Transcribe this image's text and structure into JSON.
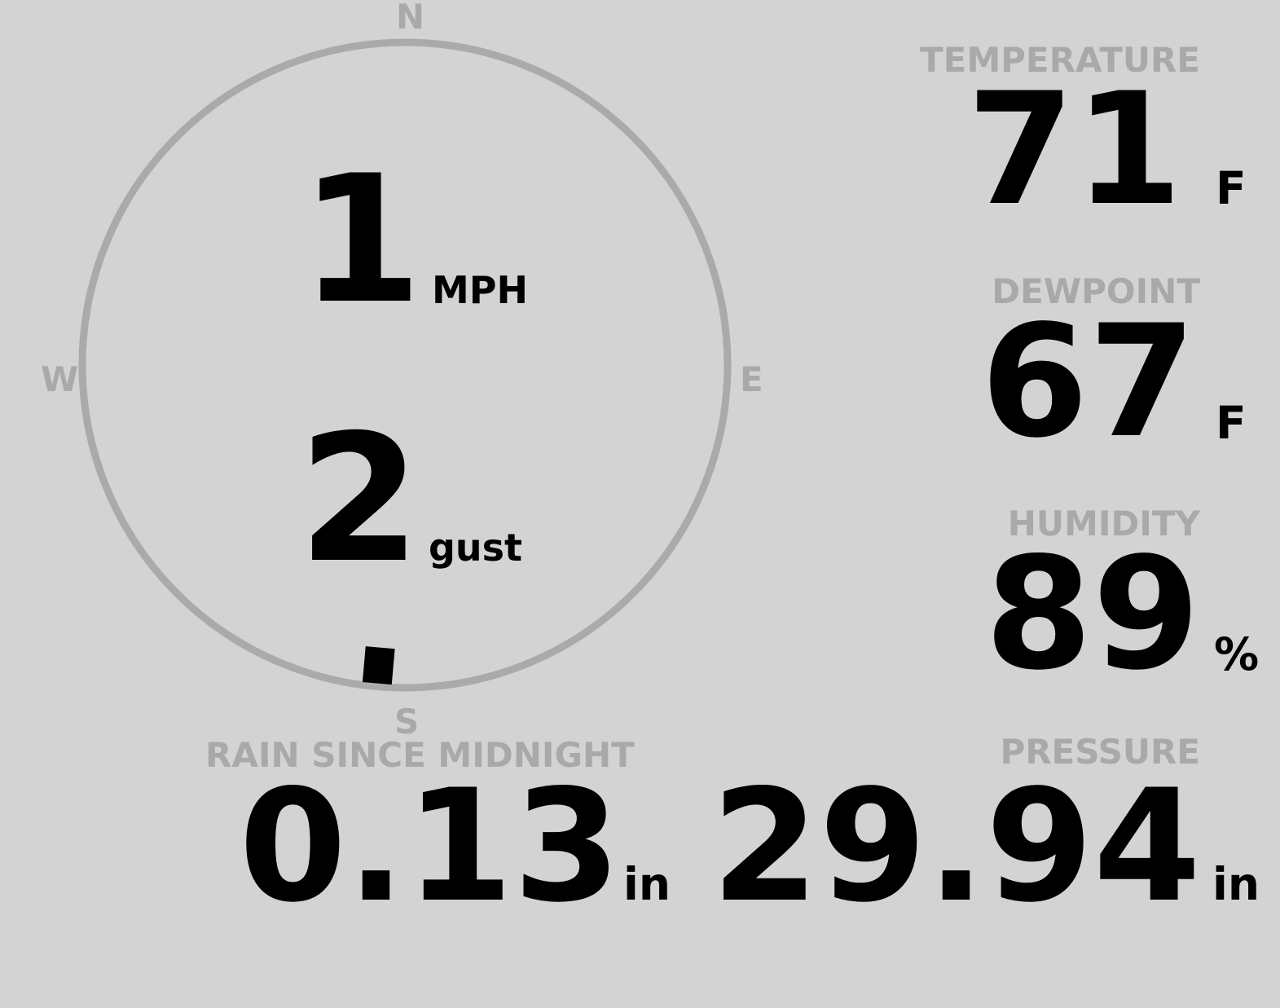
{
  "compass": {
    "north": "N",
    "south": "S",
    "east": "E",
    "west": "W",
    "wind_direction_deg": 185,
    "ring_color": "#aaaaaa"
  },
  "wind": {
    "speed": "1",
    "speed_unit": "MPH",
    "gust": "2",
    "gust_unit": "gust"
  },
  "temperature": {
    "label": "TEMPERATURE",
    "value": "71",
    "unit": "F"
  },
  "dewpoint": {
    "label": "DEWPOINT",
    "value": "67",
    "unit": "F"
  },
  "humidity": {
    "label": "HUMIDITY",
    "value": "89",
    "unit": "%"
  },
  "rain": {
    "label": "RAIN SINCE MIDNIGHT",
    "value": "0.13",
    "unit": "in"
  },
  "pressure": {
    "label": "PRESSURE",
    "value": "29.94",
    "unit": "in"
  },
  "colors": {
    "background": "#d3d3d3",
    "label": "#a9a9a9",
    "value": "#000000"
  }
}
